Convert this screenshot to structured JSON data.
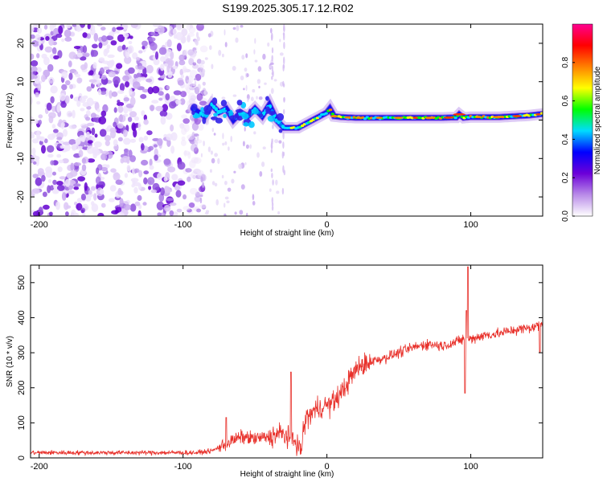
{
  "title": "S199.2025.305.17.12.R02",
  "chart_data": [
    {
      "type": "heatmap",
      "name": "spectrogram",
      "xlabel": "Height of straight line (km)",
      "ylabel": "Frequency (Hz)",
      "xlim": [
        -206,
        150
      ],
      "ylim": [
        -25,
        25
      ],
      "xticks": [
        -200,
        -100,
        0,
        100
      ],
      "yticks": [
        -20,
        -10,
        0,
        10,
        20
      ],
      "xtick_labels": [
        "-200",
        "-100",
        "0",
        "100"
      ],
      "ytick_labels": [
        "-20",
        "-10",
        "0",
        "10",
        "20"
      ],
      "noise_region_x": [
        -206,
        -93
      ],
      "scatter_region_x": [
        -93,
        -30
      ],
      "ridge": {
        "x": [
          -93,
          -85,
          -80,
          -75,
          -70,
          -65,
          -60,
          -55,
          -50,
          -45,
          -40,
          -35,
          -30,
          -25,
          -20,
          -15,
          -10,
          -5,
          0,
          2,
          5,
          10,
          20,
          40,
          60,
          80,
          90,
          92,
          95,
          100,
          120,
          140,
          150
        ],
        "y": [
          3,
          1,
          4,
          2,
          3,
          0,
          2,
          1,
          3,
          1,
          4,
          0,
          -2,
          -2,
          -2,
          -1,
          0,
          1,
          2,
          3,
          1,
          0.8,
          0.6,
          0.6,
          0.6,
          0.6,
          0.7,
          1.5,
          0.6,
          0.8,
          0.8,
          1.2,
          1.6
        ]
      },
      "colorbar": {
        "label": "Normalized spectral amplitude",
        "range": [
          0,
          1
        ],
        "ticks": [
          0.0,
          0.2,
          0.4,
          0.6,
          0.8
        ],
        "tick_labels": [
          "0.0",
          "0.2",
          "0.4",
          "0.6",
          "0.8"
        ],
        "colors": [
          "#ffffff",
          "#b98be8",
          "#6c00d8",
          "#0000ff",
          "#00dcff",
          "#00ff00",
          "#ffff00",
          "#ff8000",
          "#ff0000",
          "#ff0090"
        ]
      }
    },
    {
      "type": "line",
      "name": "snr",
      "xlabel": "Height of straight line (km)",
      "ylabel": "SNR (10 * v/v)",
      "xlim": [
        -206,
        150
      ],
      "ylim": [
        0,
        550
      ],
      "xticks": [
        -200,
        -100,
        0,
        100
      ],
      "yticks": [
        0,
        100,
        200,
        300,
        400,
        500
      ],
      "xtick_labels": [
        "-200",
        "-100",
        "0",
        "100"
      ],
      "ytick_labels": [
        "0",
        "100",
        "200",
        "300",
        "400",
        "500"
      ],
      "color": "#e8302a",
      "trend": {
        "x": [
          -206,
          -90,
          -80,
          -70,
          -60,
          -50,
          -40,
          -32,
          -22,
          -18,
          -15,
          -10,
          -5,
          0,
          5,
          10,
          15,
          20,
          25,
          30,
          40,
          50,
          60,
          70,
          80,
          90,
          95,
          100,
          110,
          120,
          130,
          140,
          150
        ],
        "y": [
          15,
          15,
          20,
          40,
          60,
          55,
          60,
          70,
          50,
          20,
          110,
          130,
          145,
          150,
          160,
          185,
          220,
          250,
          265,
          275,
          285,
          300,
          315,
          325,
          320,
          330,
          340,
          340,
          350,
          355,
          365,
          370,
          380
        ]
      },
      "spikes": [
        {
          "x": -25,
          "y": 245
        },
        {
          "x": -70,
          "y": 115
        },
        {
          "x": 96,
          "y": 185
        },
        {
          "x": 97,
          "y": 420
        },
        {
          "x": 98,
          "y": 545
        },
        {
          "x": 148,
          "y": 300
        }
      ]
    }
  ]
}
